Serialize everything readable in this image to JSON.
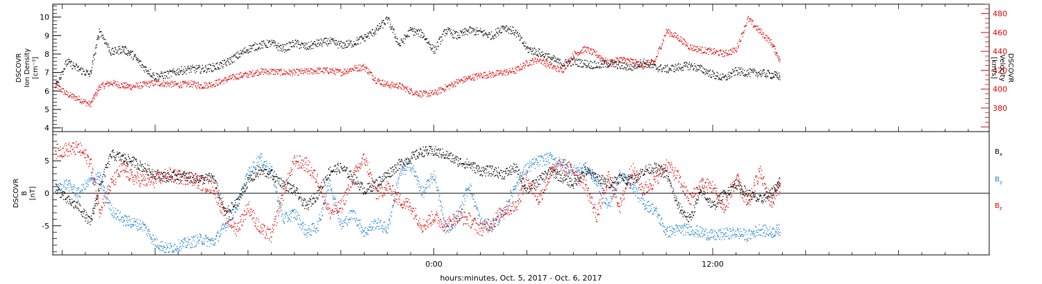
{
  "chart_data": [
    {
      "type": "scatter",
      "panel": "top",
      "left_axis": {
        "label_lines": [
          "DSCOVR",
          "Ion Density",
          "[cm⁻³]"
        ],
        "ylim": [
          3.8,
          10.7
        ],
        "ticks": [
          4,
          5,
          6,
          7,
          8,
          9,
          10
        ],
        "color": "#000000"
      },
      "right_axis": {
        "label_lines": [
          "DSCOVR",
          "Velocity",
          "[km/s]"
        ],
        "ylim": [
          355,
          490
        ],
        "ticks": [
          380,
          400,
          420,
          440,
          460,
          480
        ],
        "color": "#e00000"
      },
      "x_unit": "hours relative to Oct. 6, 2017 0:00",
      "xlim": [
        -16.4,
        23.9
      ],
      "series": [
        {
          "axis": "left",
          "color": "#000000",
          "x": [
            -16.3,
            -15.8,
            -15.3,
            -14.8,
            -14.4,
            -13.9,
            -13.4,
            -13.0,
            -12.5,
            -12.0,
            -11.5,
            -11.0,
            -10.5,
            -10.0,
            -9.5,
            -9.0,
            -8.5,
            -8.0,
            -7.5,
            -7.0,
            -6.5,
            -6.0,
            -5.5,
            -5.0,
            -4.5,
            -4.0,
            -3.5,
            -3.0,
            -2.5,
            -2.0,
            -1.5,
            -1.0,
            -0.5,
            0.0,
            0.5,
            1.0,
            1.5,
            2.0,
            2.5,
            3.0,
            3.5,
            4.0,
            4.5,
            5.0,
            5.5,
            6.0,
            6.5,
            7.0,
            7.5,
            8.0,
            8.5,
            9.0,
            9.5,
            10.0,
            10.5,
            11.0,
            11.5,
            12.0,
            12.5,
            13.0,
            13.5,
            14.0,
            14.5,
            14.9
          ],
          "values": [
            6.3,
            7.6,
            7.2,
            6.9,
            9.3,
            8.1,
            8.3,
            8.0,
            7.3,
            6.8,
            6.9,
            7.1,
            7.2,
            7.2,
            7.3,
            7.5,
            7.9,
            8.3,
            8.5,
            8.6,
            8.3,
            8.6,
            8.4,
            8.6,
            8.7,
            8.5,
            8.6,
            8.9,
            9.3,
            9.9,
            8.5,
            9.3,
            9.1,
            8.2,
            9.3,
            9.0,
            9.3,
            9.2,
            9.0,
            9.5,
            9.2,
            8.3,
            8.1,
            7.8,
            7.5,
            7.6,
            7.5,
            7.4,
            7.5,
            7.4,
            7.3,
            7.6,
            7.3,
            7.2,
            7.3,
            7.4,
            7.2,
            6.9,
            6.7,
            7.1,
            7.0,
            7.0,
            6.9,
            6.8
          ]
        },
        {
          "axis": "right",
          "color": "#e00000",
          "x": [
            -16.3,
            -15.8,
            -15.3,
            -14.8,
            -14.4,
            -13.9,
            -13.4,
            -13.0,
            -12.5,
            -12.0,
            -11.5,
            -11.0,
            -10.5,
            -10.0,
            -9.5,
            -9.0,
            -8.5,
            -8.0,
            -7.5,
            -7.0,
            -6.5,
            -6.0,
            -5.5,
            -5.0,
            -4.5,
            -4.0,
            -3.5,
            -3.0,
            -2.5,
            -2.0,
            -1.5,
            -1.0,
            -0.5,
            0.0,
            0.5,
            1.0,
            1.5,
            2.0,
            2.5,
            3.0,
            3.5,
            4.0,
            4.5,
            5.0,
            5.5,
            6.0,
            6.5,
            7.0,
            7.5,
            8.0,
            8.5,
            9.0,
            9.5,
            10.0,
            10.5,
            11.0,
            11.5,
            12.0,
            12.5,
            13.0,
            13.5,
            14.0,
            14.5,
            14.9
          ],
          "values": [
            405,
            395,
            390,
            384,
            403,
            407,
            404,
            403,
            405,
            407,
            406,
            405,
            406,
            404,
            406,
            410,
            414,
            416,
            419,
            419,
            418,
            418,
            419,
            420,
            420,
            418,
            422,
            424,
            410,
            405,
            404,
            398,
            395,
            396,
            402,
            408,
            412,
            415,
            416,
            418,
            420,
            428,
            432,
            425,
            420,
            437,
            443,
            437,
            428,
            432,
            430,
            425,
            430,
            462,
            455,
            445,
            442,
            440,
            438,
            442,
            475,
            462,
            450,
            430
          ]
        }
      ]
    },
    {
      "type": "scatter",
      "panel": "bottom",
      "left_axis": {
        "label_lines": [
          "DSCOVR",
          "B",
          "[nT]"
        ],
        "ylim": [
          -9.5,
          9.5
        ],
        "ticks": [
          -5,
          0,
          5
        ],
        "color": "#000000"
      },
      "zero_line": true,
      "x_unit": "hours relative to Oct. 6, 2017 0:00",
      "xlim": [
        -16.4,
        23.9
      ],
      "series": [
        {
          "name": "Bx",
          "legend_main": "B",
          "legend_sub": "x",
          "color": "#000000",
          "x": [
            -16.3,
            -15.8,
            -15.3,
            -14.8,
            -14.4,
            -13.9,
            -13.4,
            -13.0,
            -12.5,
            -12.0,
            -11.5,
            -11.0,
            -10.5,
            -10.0,
            -9.5,
            -9.0,
            -8.5,
            -8.0,
            -7.5,
            -7.0,
            -6.5,
            -6.0,
            -5.5,
            -5.0,
            -4.5,
            -4.0,
            -3.5,
            -3.0,
            -2.5,
            -2.0,
            -1.5,
            -1.0,
            -0.5,
            0.0,
            0.5,
            1.0,
            1.5,
            2.0,
            2.5,
            3.0,
            3.5,
            4.0,
            4.5,
            5.0,
            5.5,
            6.0,
            6.5,
            7.0,
            7.5,
            8.0,
            8.5,
            9.0,
            9.5,
            10.0,
            10.5,
            11.0,
            11.5,
            12.0,
            12.5,
            13.0,
            13.5,
            14.0,
            14.5,
            14.9
          ],
          "values": [
            1.0,
            -1.0,
            -2.0,
            -4.5,
            1.0,
            6.0,
            5.5,
            5.0,
            4.0,
            3.0,
            2.5,
            2.8,
            2.5,
            2.2,
            2.5,
            -3.0,
            -1.5,
            2.0,
            3.5,
            3.0,
            1.5,
            0.5,
            -2.0,
            0.0,
            3.5,
            4.0,
            2.5,
            0.5,
            1.5,
            3.0,
            4.5,
            5.5,
            6.5,
            6.5,
            6.0,
            5.0,
            4.5,
            3.5,
            3.5,
            3.0,
            4.0,
            0.5,
            2.0,
            3.5,
            2.5,
            1.5,
            3.5,
            2.5,
            1.5,
            2.5,
            2.0,
            3.5,
            4.0,
            3.0,
            -2.0,
            -4.0,
            0.5,
            -2.0,
            0.0,
            1.5,
            0.0,
            -1.0,
            0.0,
            2.0
          ]
        },
        {
          "name": "By",
          "legend_main": "B",
          "legend_sub": "y",
          "color": "#1a80d0",
          "x": [
            -16.3,
            -15.8,
            -15.3,
            -14.8,
            -14.4,
            -13.9,
            -13.4,
            -13.0,
            -12.5,
            -12.0,
            -11.5,
            -11.0,
            -10.5,
            -10.0,
            -9.5,
            -9.0,
            -8.5,
            -8.0,
            -7.5,
            -7.0,
            -6.5,
            -6.0,
            -5.5,
            -5.0,
            -4.5,
            -4.0,
            -3.5,
            -3.0,
            -2.5,
            -2.0,
            -1.5,
            -1.0,
            -0.5,
            0.0,
            0.5,
            1.0,
            1.5,
            2.0,
            2.5,
            3.0,
            3.5,
            4.0,
            4.5,
            5.0,
            5.5,
            6.0,
            6.5,
            7.0,
            7.5,
            8.0,
            8.5,
            9.0,
            9.5,
            10.0,
            10.5,
            11.0,
            11.5,
            12.0,
            12.5,
            13.0,
            13.5,
            14.0,
            14.5,
            14.9
          ],
          "values": [
            0.5,
            1.5,
            0.0,
            2.0,
            2.5,
            -2.5,
            -4.0,
            -4.5,
            -5.0,
            -7.5,
            -8.5,
            -8.0,
            -7.5,
            -7.0,
            -7.5,
            -5.0,
            -2.0,
            3.0,
            5.5,
            3.5,
            -4.0,
            -3.0,
            -6.0,
            -5.0,
            2.0,
            -5.0,
            -3.0,
            -6.0,
            -4.5,
            -5.5,
            3.0,
            4.5,
            0.0,
            3.0,
            -5.5,
            -4.0,
            1.5,
            -4.5,
            -5.0,
            -3.0,
            1.5,
            4.0,
            5.0,
            5.5,
            4.5,
            3.5,
            4.0,
            2.0,
            -2.0,
            3.0,
            1.5,
            -1.5,
            -2.5,
            -6.0,
            -5.5,
            -5.5,
            -6.0,
            -6.5,
            -6.2,
            -6.0,
            -6.5,
            -5.5,
            -6.0,
            -5.5
          ]
        },
        {
          "name": "Bz",
          "legend_main": "B",
          "legend_sub": "z",
          "color": "#e00000",
          "x": [
            -16.3,
            -15.8,
            -15.3,
            -14.8,
            -14.4,
            -13.9,
            -13.4,
            -13.0,
            -12.5,
            -12.0,
            -11.5,
            -11.0,
            -10.5,
            -10.0,
            -9.5,
            -9.0,
            -8.5,
            -8.0,
            -7.5,
            -7.0,
            -6.5,
            -6.0,
            -5.5,
            -5.0,
            -4.5,
            -4.0,
            -3.5,
            -3.0,
            -2.5,
            -2.0,
            -1.5,
            -1.0,
            -0.5,
            0.0,
            0.5,
            1.0,
            1.5,
            2.0,
            2.5,
            3.0,
            3.5,
            4.0,
            4.5,
            5.0,
            5.5,
            6.0,
            6.5,
            7.0,
            7.5,
            8.0,
            8.5,
            9.0,
            9.5,
            10.0,
            10.5,
            11.0,
            11.5,
            12.0,
            12.5,
            13.0,
            13.5,
            14.0,
            14.5,
            14.9
          ],
          "values": [
            6.5,
            6.8,
            7.0,
            5.0,
            -2.5,
            1.5,
            4.0,
            2.5,
            2.0,
            2.0,
            3.0,
            2.5,
            2.5,
            1.5,
            1.0,
            -3.5,
            -5.5,
            -2.0,
            -5.5,
            -6.5,
            0.0,
            5.0,
            4.5,
            2.0,
            -3.0,
            -2.0,
            2.5,
            5.5,
            0.0,
            1.0,
            -1.0,
            -2.0,
            -5.0,
            -3.5,
            -5.0,
            -3.5,
            -4.0,
            -5.5,
            -4.5,
            -2.5,
            -2.0,
            2.5,
            -1.0,
            3.0,
            4.5,
            3.5,
            1.5,
            -3.5,
            2.5,
            -2.0,
            4.0,
            0.5,
            2.0,
            4.5,
            2.5,
            -1.0,
            1.5,
            1.0,
            -2.5,
            2.5,
            -2.0,
            3.5,
            -1.5,
            1.5
          ]
        }
      ]
    }
  ],
  "x_axis": {
    "tick_labels": [
      {
        "x": 0,
        "label": "0:00"
      },
      {
        "x": 12,
        "label": "12:00"
      }
    ],
    "xlabel": "hours:minutes, Oct.  5, 2017 - Oct.  6, 2017"
  }
}
